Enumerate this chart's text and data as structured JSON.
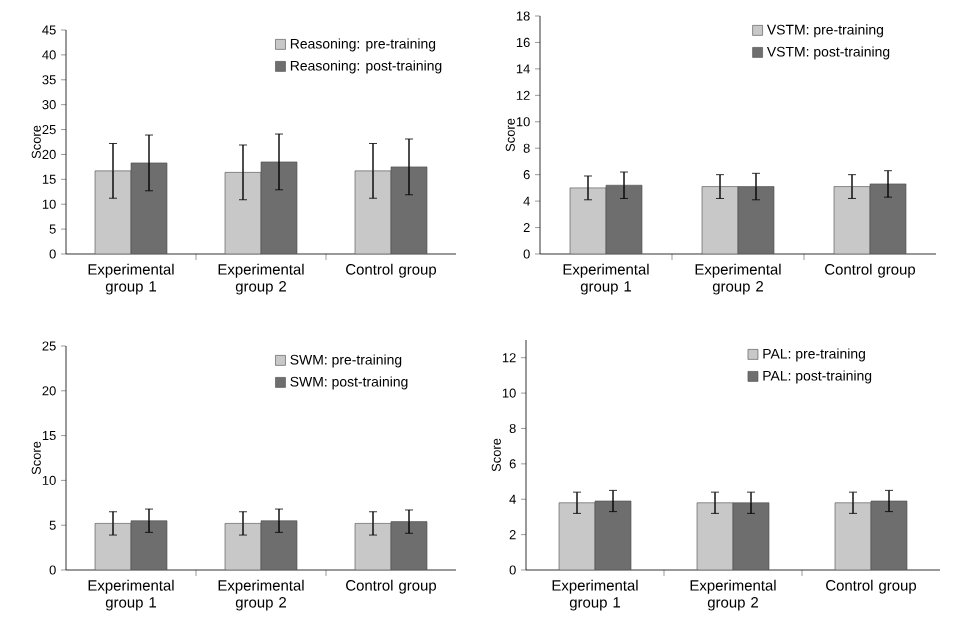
{
  "chart_data": [
    {
      "type": "bar",
      "ylabel": "Score",
      "categories": [
        "Experimental group 1",
        "Experimental group 2",
        "Control group"
      ],
      "ylim": [
        0,
        45
      ],
      "yticks": [
        0,
        5,
        10,
        15,
        20,
        25,
        30,
        35,
        40,
        45
      ],
      "legend": "top right",
      "series": [
        {
          "name": "Reasoning: pre-training",
          "color": "#c8c8c8",
          "values": [
            16.7,
            16.4,
            16.7
          ],
          "errors": [
            5.5,
            5.5,
            5.5
          ]
        },
        {
          "name": "Reasoning: post-training",
          "color": "#6e6e6e",
          "values": [
            18.3,
            18.5,
            17.5
          ],
          "errors": [
            5.6,
            5.6,
            5.6
          ]
        }
      ]
    },
    {
      "type": "bar",
      "ylabel": "Score",
      "categories": [
        "Experimental group 1",
        "Experimental group 2",
        "Control group"
      ],
      "ylim": [
        0,
        18
      ],
      "yticks": [
        0,
        2,
        4,
        6,
        8,
        10,
        12,
        14,
        16,
        18
      ],
      "legend": "top right",
      "series": [
        {
          "name": "VSTM: pre-training",
          "color": "#c8c8c8",
          "values": [
            5.0,
            5.1,
            5.1
          ],
          "errors": [
            0.9,
            0.9,
            0.9
          ]
        },
        {
          "name": "VSTM: post-training",
          "color": "#6e6e6e",
          "values": [
            5.2,
            5.1,
            5.3
          ],
          "errors": [
            1.0,
            1.0,
            1.0
          ]
        }
      ]
    },
    {
      "type": "bar",
      "ylabel": "Score",
      "categories": [
        "Experimental group 1",
        "Experimental group 2",
        "Control group"
      ],
      "ylim": [
        0,
        25
      ],
      "yticks": [
        0,
        5,
        10,
        15,
        20,
        25
      ],
      "legend": "top right",
      "series": [
        {
          "name": "SWM: pre-training",
          "color": "#c8c8c8",
          "values": [
            5.2,
            5.2,
            5.2
          ],
          "errors": [
            1.3,
            1.3,
            1.3
          ]
        },
        {
          "name": "SWM: post-training",
          "color": "#6e6e6e",
          "values": [
            5.5,
            5.5,
            5.4
          ],
          "errors": [
            1.3,
            1.3,
            1.3
          ]
        }
      ]
    },
    {
      "type": "bar",
      "ylabel": "Score",
      "categories": [
        "Experimental group 1",
        "Experimental group 2",
        "Control group"
      ],
      "ylim": [
        0,
        13
      ],
      "yticks": [
        0,
        2,
        4,
        6,
        8,
        10,
        12
      ],
      "legend": "top right",
      "series": [
        {
          "name": "PAL: pre-training",
          "color": "#c8c8c8",
          "values": [
            3.8,
            3.8,
            3.8
          ],
          "errors": [
            0.6,
            0.6,
            0.6
          ]
        },
        {
          "name": "PAL: post-training",
          "color": "#6e6e6e",
          "values": [
            3.9,
            3.8,
            3.9
          ],
          "errors": [
            0.6,
            0.6,
            0.6
          ]
        }
      ]
    }
  ]
}
